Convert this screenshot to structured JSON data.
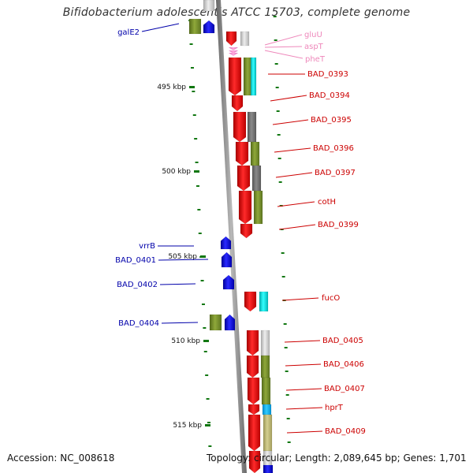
{
  "title": "Bifidobacterium adolescentis ATCC 15703, complete genome",
  "footer": {
    "accession": "Accession: NC_008618",
    "summary": "Topology: circular; Length: 2,089,645 bp; Genes: 1,701"
  },
  "colors": {
    "gene_plus": "#ee1111",
    "gene_minus": "#1a1aee",
    "trna": "#ee88cc",
    "label_plus": "#cc0000",
    "label_minus": "#0000aa",
    "label_trna": "#ee88bb",
    "tick": "#117711",
    "backbone": "#888888"
  },
  "scale": {
    "unit": "kbp",
    "major_ticks": [
      {
        "label": "495 kbp"
      },
      {
        "label": "500 kbp"
      },
      {
        "label": "505 kbp"
      },
      {
        "label": "510 kbp"
      },
      {
        "label": "515 kbp"
      }
    ]
  },
  "genes": [
    {
      "label": "galE2",
      "strand": "minus"
    },
    {
      "label": "gluU",
      "strand": "plus",
      "type": "tRNA"
    },
    {
      "label": "aspT",
      "strand": "plus",
      "type": "tRNA"
    },
    {
      "label": "pheT",
      "strand": "plus",
      "type": "tRNA"
    },
    {
      "label": "BAD_0393",
      "strand": "plus"
    },
    {
      "label": "BAD_0394",
      "strand": "plus"
    },
    {
      "label": "BAD_0395",
      "strand": "plus"
    },
    {
      "label": "BAD_0396",
      "strand": "plus"
    },
    {
      "label": "BAD_0397",
      "strand": "plus"
    },
    {
      "label": "cotH",
      "strand": "plus"
    },
    {
      "label": "BAD_0399",
      "strand": "plus"
    },
    {
      "label": "vrrB",
      "strand": "minus"
    },
    {
      "label": "BAD_0401",
      "strand": "minus"
    },
    {
      "label": "BAD_0402",
      "strand": "minus"
    },
    {
      "label": "fucO",
      "strand": "plus"
    },
    {
      "label": "BAD_0404",
      "strand": "minus"
    },
    {
      "label": "BAD_0405",
      "strand": "plus"
    },
    {
      "label": "BAD_0406",
      "strand": "plus"
    },
    {
      "label": "BAD_0407",
      "strand": "plus"
    },
    {
      "label": "hprT",
      "strand": "plus"
    },
    {
      "label": "BAD_0409",
      "strand": "plus"
    }
  ]
}
